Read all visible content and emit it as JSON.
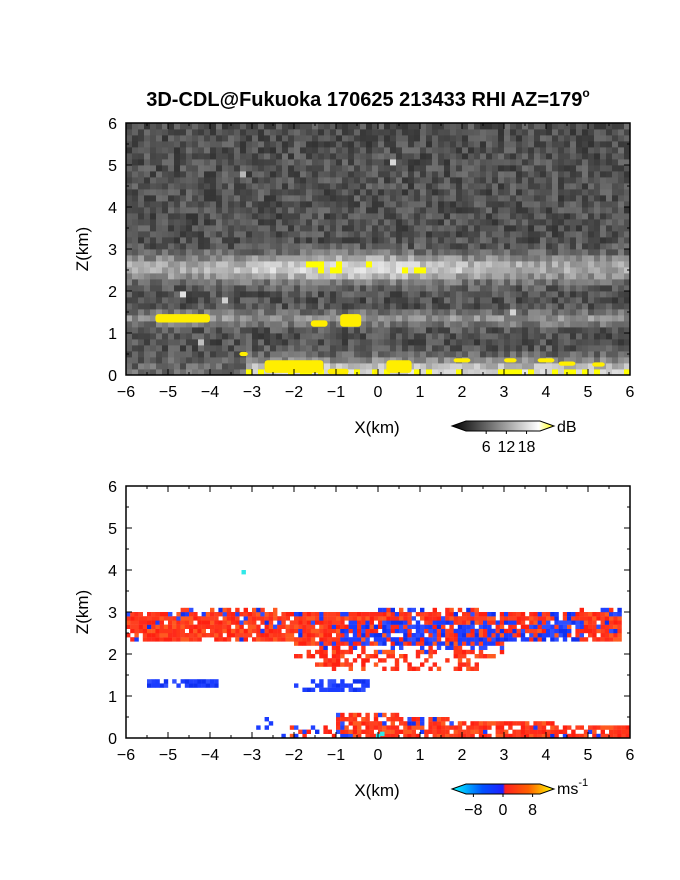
{
  "title": "3D-CDL@Fukuoka 170625 213433 RHI AZ=179",
  "title_degree": "o",
  "chart_data": [
    {
      "type": "heatmap",
      "name": "backscatter",
      "xlabel": "X(km)",
      "ylabel": "Z(km)",
      "xlim": [
        -6,
        6
      ],
      "ylim": [
        0,
        6
      ],
      "xticks": [
        "-6",
        "-5",
        "-4",
        "-3",
        "-2",
        "-1",
        "0",
        "1",
        "2",
        "3",
        "4",
        "5",
        "6"
      ],
      "yticks": [
        "0",
        "1",
        "2",
        "3",
        "4",
        "5",
        "6"
      ],
      "colorbar": {
        "unit": "dB",
        "ticks": [
          "6",
          "12",
          "18"
        ],
        "range": [
          0,
          22
        ]
      },
      "features": [
        {
          "label": "elevated layer",
          "x": [
            -6,
            6
          ],
          "z": [
            2.1,
            3.1
          ]
        },
        {
          "label": "layer",
          "x": [
            -5.6,
            -2.0
          ],
          "z": [
            1.2,
            1.5
          ]
        },
        {
          "label": "layer",
          "x": [
            -1.6,
            -0.4
          ],
          "z": [
            1.1,
            1.5
          ]
        },
        {
          "label": "near-surface",
          "x": [
            -3.4,
            6
          ],
          "z": [
            0,
            0.6
          ]
        }
      ]
    },
    {
      "type": "heatmap",
      "name": "doppler velocity",
      "xlabel": "X(km)",
      "ylabel": "Z(km)",
      "xlim": [
        -6,
        6
      ],
      "ylim": [
        0,
        6
      ],
      "xticks": [
        "-6",
        "-5",
        "-4",
        "-3",
        "-2",
        "-1",
        "0",
        "1",
        "2",
        "3",
        "4",
        "5",
        "6"
      ],
      "yticks": [
        "0",
        "1",
        "2",
        "3",
        "4",
        "5",
        "6"
      ],
      "colorbar": {
        "unit": "ms",
        "unit_exp": "-1",
        "ticks": [
          "-8",
          "0",
          "8"
        ],
        "range": [
          -10,
          10
        ]
      },
      "features": [
        {
          "label": "receding (red)",
          "x": [
            -6,
            5.8
          ],
          "z": [
            1.9,
            3.2
          ]
        },
        {
          "label": "approaching (blue)",
          "x": [
            -1.0,
            5.0
          ],
          "z": [
            2.1,
            3.1
          ]
        },
        {
          "label": "approaching (blue)",
          "x": [
            -5.5,
            -3.7
          ],
          "z": [
            1.15,
            1.4
          ]
        },
        {
          "label": "approaching (blue)",
          "x": [
            -2.0,
            -0.2
          ],
          "z": [
            1.1,
            1.45
          ]
        },
        {
          "label": "receding (red)",
          "x": [
            -1.2,
            6
          ],
          "z": [
            0,
            0.7
          ]
        }
      ]
    }
  ]
}
